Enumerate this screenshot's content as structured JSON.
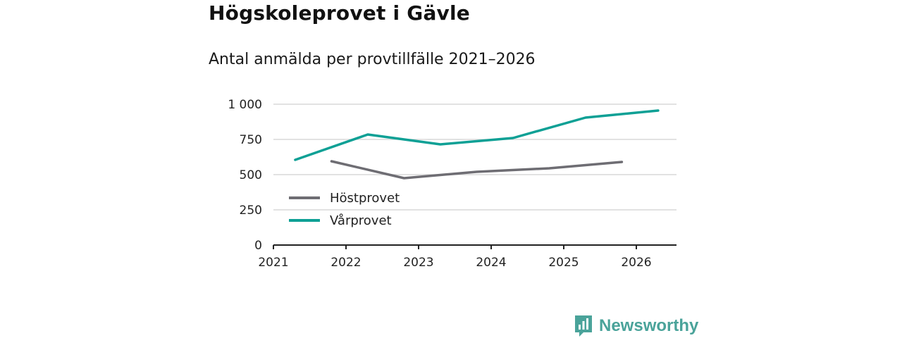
{
  "header": {
    "title": "Högskoleprovet i Gävle",
    "subtitle": "Antal anmälda per provtillfälle 2021–2026"
  },
  "chart_data": {
    "type": "line",
    "title": "Högskoleprovet i Gävle",
    "subtitle": "Antal anmälda per provtillfälle 2021–2026",
    "xlabel": "",
    "ylabel": "",
    "xlim": [
      2021,
      2026.5
    ],
    "ylim": [
      0,
      1000
    ],
    "x_ticks": [
      2021,
      2022,
      2023,
      2024,
      2025,
      2026
    ],
    "x_tick_labels": [
      "2021",
      "2022",
      "2023",
      "2024",
      "2025",
      "2026"
    ],
    "y_ticks": [
      0,
      250,
      500,
      750,
      1000
    ],
    "y_tick_labels": [
      "0",
      "250",
      "500",
      "750",
      "1 000"
    ],
    "grid": "horizontal",
    "legend_position": "center-left",
    "series": [
      {
        "name": "Höstprovet",
        "color": "#6e6d73",
        "x": [
          2021.8,
          2022.8,
          2023.8,
          2024.8,
          2025.8
        ],
        "values": [
          595,
          475,
          520,
          545,
          590
        ]
      },
      {
        "name": "Vårprovet",
        "color": "#0ea095",
        "x": [
          2021.3,
          2022.3,
          2023.3,
          2024.3,
          2025.3,
          2026.3
        ],
        "values": [
          605,
          785,
          715,
          760,
          905,
          955
        ]
      }
    ]
  },
  "branding": {
    "name": "Newsworthy",
    "icon": "bar-chart-speech-icon",
    "color": "#4aa39a"
  }
}
